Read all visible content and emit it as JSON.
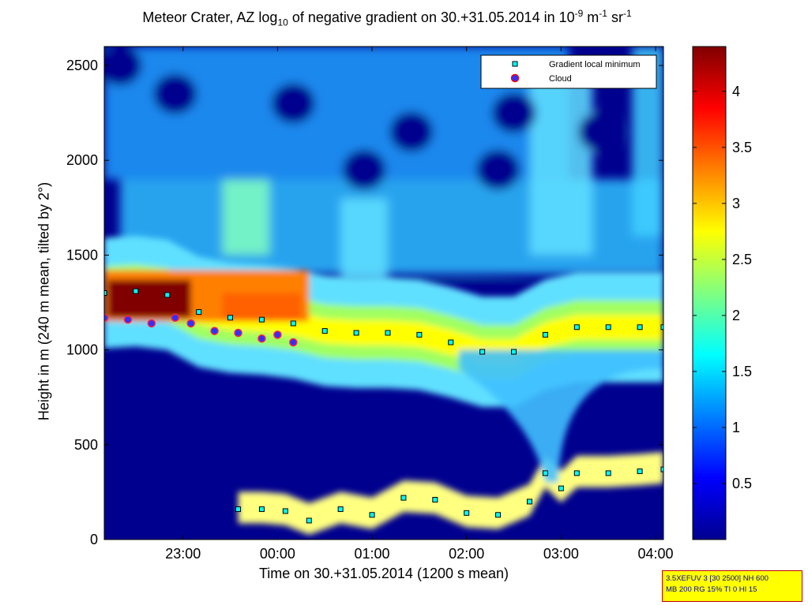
{
  "chart_data": {
    "type": "heatmap",
    "title_text": "Meteor Crater, AZ log",
    "title_sub": "10",
    "title_text2": " of negative gradient on 30.+31.05.2014 in 10",
    "title_sup1": "-9",
    "title_text3": " m",
    "title_sup2": "-1",
    "title_text4": " sr",
    "title_sup3": "-1",
    "xlabel": "Time on 30.+31.05.2014 (1200 s mean)",
    "ylabel": "Height in m (240 m mean, tilted by 2°)",
    "xlim": [
      "22:10",
      "04:05"
    ],
    "ylim": [
      0,
      2600
    ],
    "x_ticks": [
      "23:00",
      "00:00",
      "01:00",
      "02:00",
      "03:00",
      "04:00"
    ],
    "y_ticks": [
      "0",
      "500",
      "1000",
      "1500",
      "2000",
      "2500"
    ],
    "colorbar": {
      "range": [
        0,
        4.4
      ],
      "ticks": [
        "0.5",
        "1",
        "1.5",
        "2",
        "2.5",
        "3",
        "3.5",
        "4"
      ],
      "colors": [
        "#00008f",
        "#0000ff",
        "#0080ff",
        "#00ffff",
        "#80ff80",
        "#ffff00",
        "#ff8000",
        "#ff0000",
        "#800000"
      ]
    },
    "legend": {
      "position": "top-right",
      "entries": [
        {
          "label": "Gradient local minimum",
          "marker": "square",
          "color": "#00ffff"
        },
        {
          "label": "Cloud",
          "marker": "circle",
          "color": "#ff0000"
        }
      ]
    },
    "series": [
      {
        "name": "Gradient local minimum",
        "note": "upper layer",
        "x": [
          "22:10",
          "22:30",
          "22:50",
          "23:10",
          "23:30",
          "23:50",
          "00:10",
          "00:30",
          "00:50",
          "01:10",
          "01:30",
          "01:50",
          "02:10",
          "02:30",
          "02:50",
          "03:10",
          "03:30",
          "03:50",
          "04:05"
        ],
        "y": [
          1300,
          1310,
          1290,
          1200,
          1170,
          1160,
          1140,
          1100,
          1090,
          1090,
          1080,
          1040,
          990,
          990,
          1080,
          1120,
          1120,
          1120,
          1120
        ]
      },
      {
        "name": "Gradient local minimum",
        "note": "lower layer",
        "x": [
          "23:35",
          "23:50",
          "00:05",
          "00:20",
          "00:40",
          "01:00",
          "01:20",
          "01:40",
          "02:00",
          "02:20",
          "02:40",
          "02:50",
          "03:00",
          "03:10",
          "03:30",
          "03:50",
          "04:05"
        ],
        "y": [
          160,
          160,
          150,
          100,
          160,
          130,
          220,
          210,
          140,
          130,
          200,
          350,
          270,
          350,
          350,
          360,
          370
        ]
      },
      {
        "name": "Cloud",
        "x": [
          "22:10",
          "22:25",
          "22:40",
          "22:55",
          "23:05",
          "23:20",
          "23:35",
          "23:50",
          "00:00",
          "00:10"
        ],
        "y": [
          1170,
          1160,
          1140,
          1170,
          1140,
          1100,
          1090,
          1060,
          1080,
          1040
        ]
      }
    ]
  },
  "info_box": {
    "line1": "3.5XEFUV 3 [30 2500] NH 600",
    "line2": "MB 200 RG 15% TI 0 HI 15"
  }
}
